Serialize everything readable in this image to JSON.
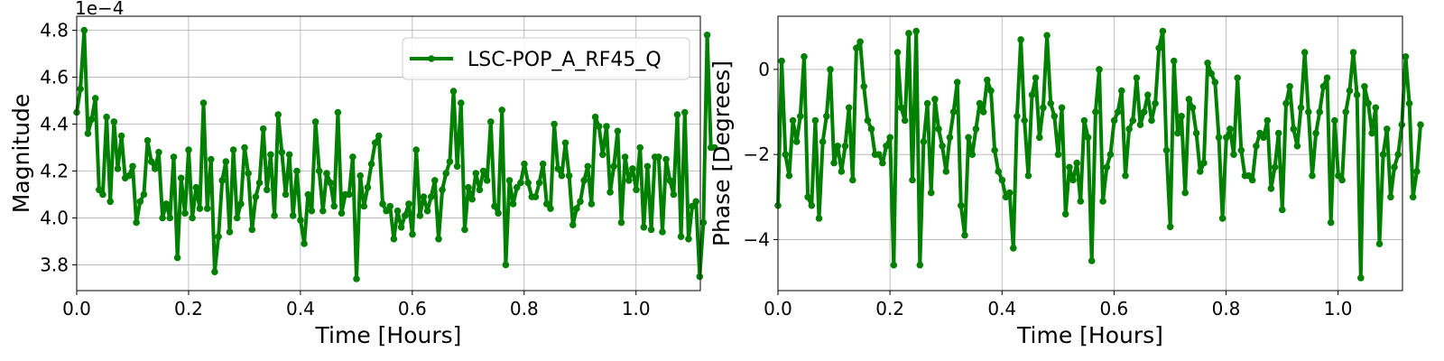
{
  "chart_data": [
    {
      "type": "line",
      "xlabel": "Time [Hours]",
      "ylabel": "Magnitude",
      "y_offset_label": "1e−4",
      "xlim": [
        0,
        1.115
      ],
      "ylim": [
        3.69,
        4.86
      ],
      "xticks": [
        0.0,
        0.2,
        0.4,
        0.6,
        0.8,
        1.0
      ],
      "xtick_labels": [
        "0.0",
        "0.2",
        "0.4",
        "0.6",
        "0.8",
        "1.0"
      ],
      "yticks": [
        3.8,
        4.0,
        4.2,
        4.4,
        4.6,
        4.8
      ],
      "ytick_labels": [
        "3.8",
        "4.0",
        "4.2",
        "4.4",
        "4.6",
        "4.8"
      ],
      "grid": true,
      "legend": {
        "position": "top-right",
        "entries": [
          "LSC-POP_A_RF45_Q"
        ]
      },
      "series": [
        {
          "name": "LSC-POP_A_RF45_Q",
          "color": "#008000",
          "marker": "circle",
          "x_start": 0.0,
          "x_step": 0.00667,
          "y": [
            4.45,
            4.55,
            4.8,
            4.36,
            4.42,
            4.51,
            4.12,
            4.1,
            4.43,
            4.07,
            4.41,
            4.21,
            4.35,
            4.17,
            4.18,
            4.22,
            3.98,
            4.07,
            4.1,
            4.33,
            4.24,
            4.21,
            4.28,
            4.0,
            4.06,
            4.0,
            4.26,
            3.83,
            4.17,
            4.02,
            4.29,
            4.0,
            4.13,
            4.04,
            4.49,
            4.04,
            4.25,
            3.77,
            3.92,
            4.16,
            4.24,
            3.94,
            4.29,
            4.0,
            4.06,
            4.3,
            4.19,
            3.95,
            4.09,
            4.15,
            4.38,
            4.12,
            4.27,
            4.01,
            4.44,
            4.28,
            4.1,
            4.27,
            4.01,
            4.2,
            3.99,
            3.89,
            4.1,
            4.03,
            4.41,
            4.2,
            4.03,
            4.19,
            4.15,
            4.05,
            4.45,
            4.02,
            4.1,
            4.1,
            4.26,
            3.74,
            4.18,
            4.05,
            4.13,
            4.23,
            4.32,
            4.35,
            4.06,
            4.03,
            4.05,
            3.91,
            4.03,
            3.96,
            4.01,
            4.06,
            3.93,
            4.29,
            4.01,
            4.09,
            4.03,
            4.09,
            4.16,
            3.91,
            4.12,
            4.19,
            4.24,
            4.54,
            4.22,
            4.49,
            3.95,
            4.13,
            4.08,
            4.19,
            4.12,
            4.2,
            4.16,
            4.41,
            4.05,
            4.02,
            4.46,
            3.8,
            4.16,
            4.06,
            4.13,
            4.15,
            4.23,
            4.15,
            4.09,
            4.09,
            4.15,
            4.23,
            4.06,
            4.04,
            4.4,
            4.21,
            4.18,
            4.32,
            4.18,
            3.97,
            4.04,
            4.07,
            4.16,
            4.22,
            4.06,
            4.43,
            4.39,
            4.27,
            4.39,
            4.11,
            4.22,
            4.37,
            3.98,
            4.26,
            4.16,
            4.21,
            4.12,
            4.3,
            3.96,
            4.22,
            3.95,
            4.26,
            4.26,
            3.94,
            4.25,
            4.16,
            4.1,
            4.44,
            3.92,
            4.45,
            3.91,
            4.05,
            4.07,
            3.75,
            3.98,
            4.78,
            4.3,
            4.3
          ]
        }
      ]
    },
    {
      "type": "line",
      "xlabel": "Time [Hours]",
      "ylabel": "Phase [Degrees]",
      "xlim": [
        0,
        1.115
      ],
      "ylim": [
        -5.2,
        1.25
      ],
      "xticks": [
        0.0,
        0.2,
        0.4,
        0.6,
        0.8,
        1.0
      ],
      "xtick_labels": [
        "0.0",
        "0.2",
        "0.4",
        "0.6",
        "0.8",
        "1.0"
      ],
      "yticks": [
        -4,
        -2,
        0
      ],
      "ytick_labels": [
        "−4",
        "−2",
        "0"
      ],
      "grid": true,
      "series": [
        {
          "color": "#008000",
          "marker": "circle",
          "x_start": 0.0,
          "x_step": 0.00667,
          "y": [
            -3.2,
            0.2,
            -2.0,
            -2.5,
            -1.2,
            -1.7,
            -1.1,
            0.3,
            -3.0,
            -3.2,
            -1.2,
            -3.5,
            -1.7,
            -1.1,
            0.0,
            -2.2,
            -1.8,
            -2.4,
            -1.8,
            -0.9,
            -2.6,
            0.5,
            0.65,
            -0.4,
            -1.2,
            -1.4,
            -2.0,
            -2.0,
            -2.2,
            -1.8,
            -1.6,
            -4.6,
            0.4,
            -0.9,
            -1.2,
            0.85,
            -2.6,
            0.9,
            -4.6,
            -1.7,
            -0.8,
            -2.9,
            -0.7,
            -1.4,
            -1.8,
            -2.4,
            -1.6,
            -1.0,
            -0.3,
            -3.2,
            -3.9,
            -1.6,
            -2.0,
            -1.4,
            -0.8,
            -1.0,
            -0.25,
            -0.5,
            -1.9,
            -2.4,
            -2.6,
            -3.0,
            -2.9,
            -4.2,
            -1.1,
            0.7,
            -1.2,
            -2.5,
            -0.6,
            -0.2,
            -1.6,
            -0.9,
            0.8,
            -0.8,
            -1.1,
            -2.0,
            -0.9,
            -3.4,
            -2.3,
            -2.6,
            -2.2,
            -3.1,
            -1.2,
            -1.6,
            -4.5,
            -1.0,
            0.0,
            -3.1,
            -2.3,
            -2.0,
            -1.2,
            -1.0,
            -0.5,
            -2.5,
            -1.4,
            -1.2,
            -0.2,
            -1.3,
            -1.0,
            -0.6,
            -1.2,
            -0.8,
            0.5,
            0.9,
            -1.9,
            -3.7,
            0.2,
            -1.5,
            -1.1,
            -2.9,
            -0.7,
            -0.9,
            -1.5,
            -2.4,
            -2.2,
            0.15,
            -0.1,
            -0.3,
            -1.6,
            -3.5,
            -1.6,
            -1.4,
            -2.0,
            -0.2,
            -1.9,
            -2.5,
            -2.5,
            -2.6,
            -1.8,
            -1.5,
            -1.6,
            -1.2,
            -2.8,
            -2.3,
            -1.5,
            -3.3,
            -0.8,
            -0.4,
            -1.4,
            -1.8,
            -0.9,
            0.4,
            -1.0,
            -2.5,
            -1.5,
            -1.0,
            -0.4,
            -0.2,
            -3.6,
            -1.2,
            -2.5,
            -2.6,
            -1.0,
            -0.5,
            0.4,
            -0.6,
            -4.9,
            -0.4,
            -0.8,
            -1.5,
            -0.9,
            -4.1,
            -2.0,
            -1.4,
            -3.0,
            -2.3,
            -2.0,
            -1.3,
            0.3,
            -0.8,
            -3.0,
            -2.4,
            -1.3
          ]
        }
      ]
    }
  ]
}
